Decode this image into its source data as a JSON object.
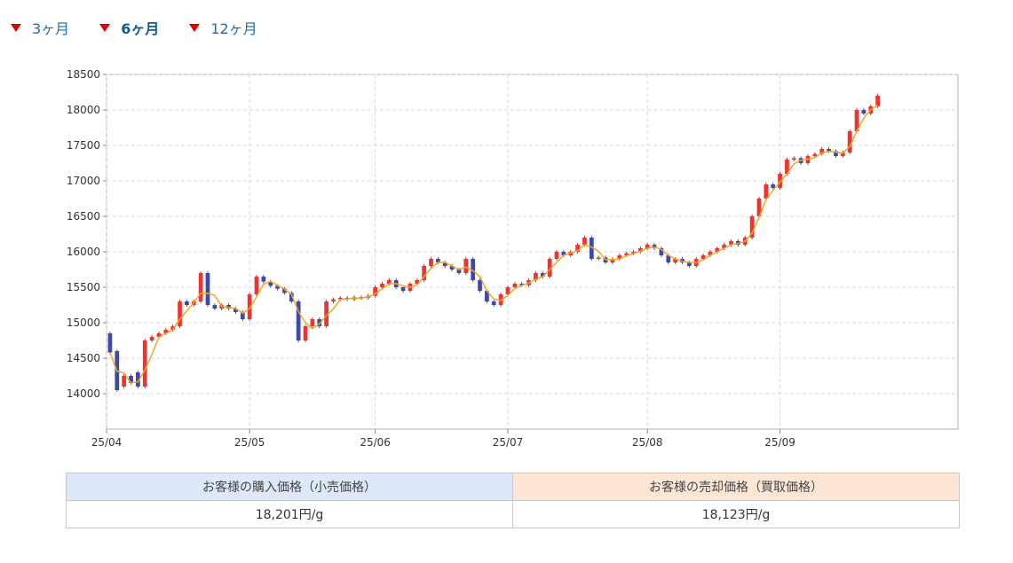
{
  "tabs": [
    {
      "label": "3ヶ月",
      "active": false
    },
    {
      "label": "6ヶ月",
      "active": true
    },
    {
      "label": "12ヶ月",
      "active": false
    }
  ],
  "price_table": {
    "buy_header": "お客様の購入価格（小売価格）",
    "sell_header": "お客様の売却価格（買取価格）",
    "buy_value": "18,201円/g",
    "sell_value": "18,123円/g"
  },
  "colors": {
    "up": "#ee3333",
    "down": "#3c4aa8",
    "ma": "#f5a623",
    "tab_marker": "#e00000"
  },
  "chart_data": {
    "type": "candlestick",
    "ylim": [
      13500,
      18500
    ],
    "yticks": [
      14000,
      14500,
      15000,
      15500,
      16000,
      16500,
      17000,
      17500,
      18000,
      18500
    ],
    "xticks": [
      {
        "label": "25/04",
        "index": -0.5
      },
      {
        "label": "25/05",
        "index": 20
      },
      {
        "label": "25/06",
        "index": 38
      },
      {
        "label": "25/07",
        "index": 57
      },
      {
        "label": "25/08",
        "index": 77
      },
      {
        "label": "25/09",
        "index": 96
      }
    ],
    "x_max_index": 122,
    "grid": true,
    "candles": [
      [
        14850,
        14580
      ],
      [
        14600,
        14050
      ],
      [
        14100,
        14250
      ],
      [
        14250,
        14150
      ],
      [
        14300,
        14100
      ],
      [
        14100,
        14750
      ],
      [
        14750,
        14800
      ],
      [
        14800,
        14850
      ],
      [
        14850,
        14900
      ],
      [
        14900,
        14950
      ],
      [
        14950,
        15300
      ],
      [
        15300,
        15250
      ],
      [
        15250,
        15300
      ],
      [
        15300,
        15700
      ],
      [
        15700,
        15250
      ],
      [
        15250,
        15200
      ],
      [
        15200,
        15250
      ],
      [
        15250,
        15200
      ],
      [
        15200,
        15150
      ],
      [
        15150,
        15050
      ],
      [
        15050,
        15400
      ],
      [
        15400,
        15650
      ],
      [
        15650,
        15580
      ],
      [
        15580,
        15520
      ],
      [
        15520,
        15480
      ],
      [
        15480,
        15420
      ],
      [
        15420,
        15300
      ],
      [
        15300,
        14750
      ],
      [
        14750,
        14950
      ],
      [
        14950,
        15050
      ],
      [
        15050,
        14950
      ],
      [
        14950,
        15300
      ],
      [
        15300,
        15330
      ],
      [
        15330,
        15350
      ],
      [
        15350,
        15330
      ],
      [
        15330,
        15360
      ],
      [
        15360,
        15350
      ],
      [
        15350,
        15380
      ],
      [
        15380,
        15500
      ],
      [
        15500,
        15550
      ],
      [
        15550,
        15600
      ],
      [
        15600,
        15500
      ],
      [
        15500,
        15450
      ],
      [
        15450,
        15550
      ],
      [
        15550,
        15600
      ],
      [
        15600,
        15800
      ],
      [
        15800,
        15900
      ],
      [
        15900,
        15850
      ],
      [
        15850,
        15800
      ],
      [
        15800,
        15750
      ],
      [
        15750,
        15700
      ],
      [
        15700,
        15900
      ],
      [
        15900,
        15600
      ],
      [
        15600,
        15450
      ],
      [
        15450,
        15300
      ],
      [
        15300,
        15250
      ],
      [
        15250,
        15400
      ],
      [
        15400,
        15500
      ],
      [
        15500,
        15550
      ],
      [
        15550,
        15530
      ],
      [
        15530,
        15600
      ],
      [
        15600,
        15700
      ],
      [
        15700,
        15650
      ],
      [
        15650,
        15900
      ],
      [
        15900,
        16000
      ],
      [
        16000,
        15950
      ],
      [
        15950,
        16000
      ],
      [
        16000,
        16100
      ],
      [
        16100,
        16200
      ],
      [
        16200,
        15900
      ],
      [
        15900,
        15920
      ],
      [
        15920,
        15850
      ],
      [
        15850,
        15900
      ],
      [
        15900,
        15950
      ],
      [
        15950,
        15980
      ],
      [
        15980,
        16000
      ],
      [
        16000,
        16050
      ],
      [
        16050,
        16100
      ],
      [
        16100,
        16050
      ],
      [
        16050,
        15950
      ],
      [
        15950,
        15850
      ],
      [
        15850,
        15900
      ],
      [
        15900,
        15850
      ],
      [
        15850,
        15800
      ],
      [
        15800,
        15900
      ],
      [
        15900,
        15950
      ],
      [
        15950,
        16000
      ],
      [
        16000,
        16050
      ],
      [
        16050,
        16100
      ],
      [
        16100,
        16150
      ],
      [
        16150,
        16100
      ],
      [
        16100,
        16200
      ],
      [
        16200,
        16500
      ],
      [
        16500,
        16750
      ],
      [
        16750,
        16950
      ],
      [
        16950,
        16900
      ],
      [
        16900,
        17100
      ],
      [
        17100,
        17300
      ],
      [
        17300,
        17320
      ],
      [
        17320,
        17250
      ],
      [
        17250,
        17350
      ],
      [
        17350,
        17380
      ],
      [
        17380,
        17450
      ],
      [
        17450,
        17420
      ],
      [
        17420,
        17350
      ],
      [
        17350,
        17400
      ],
      [
        17400,
        17700
      ],
      [
        17700,
        18000
      ],
      [
        18000,
        17950
      ],
      [
        17950,
        18050
      ],
      [
        18050,
        18201
      ]
    ]
  }
}
